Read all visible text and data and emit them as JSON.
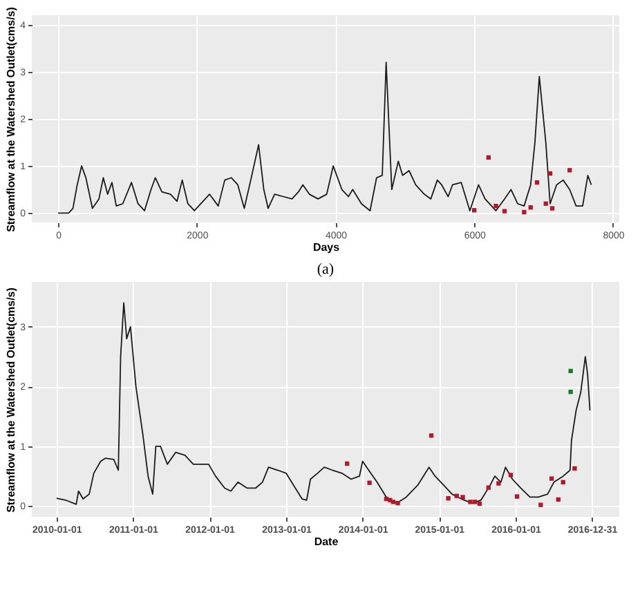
{
  "chart_data": [
    {
      "type": "line",
      "xlabel": "Days",
      "ylabel": "Streamflow at the Watershed Outlet(cms/s)",
      "annotations": [
        "(a)"
      ],
      "xlim": [
        -380,
        8090
      ],
      "xticks": [
        0,
        2000,
        4000,
        6000,
        8000
      ],
      "ylim": [
        -0.2,
        4.2
      ],
      "yticks": [
        0,
        1,
        2,
        3,
        4
      ],
      "grid": true,
      "series": [
        {
          "type": "line",
          "color": "#1a1a1a",
          "x": [
            0,
            150,
            213,
            275,
            338,
            400,
            494,
            588,
            651,
            713,
            776,
            838,
            932,
            1057,
            1151,
            1245,
            1339,
            1401,
            1495,
            1620,
            1714,
            1789,
            1870,
            1964,
            2058,
            2183,
            2308,
            2402,
            2496,
            2590,
            2683,
            2777,
            2890,
            2965,
            3027,
            3121,
            3246,
            3371,
            3465,
            3528,
            3622,
            3747,
            3872,
            3966,
            4091,
            4185,
            4247,
            4372,
            4497,
            4591,
            4673,
            4729,
            4810,
            4904,
            4966,
            5060,
            5154,
            5279,
            5373,
            5467,
            5529,
            5623,
            5686,
            5811,
            5936,
            6061,
            6155,
            6311,
            6436,
            6530,
            6624,
            6718,
            6812,
            6874,
            6937,
            7031,
            7093,
            7187,
            7281,
            7375,
            7468,
            7562,
            7637,
            7687
          ],
          "values": [
            0,
            0,
            0.1,
            0.6,
            1.0,
            0.75,
            0.1,
            0.3,
            0.75,
            0.4,
            0.65,
            0.15,
            0.2,
            0.65,
            0.2,
            0.05,
            0.5,
            0.75,
            0.45,
            0.4,
            0.25,
            0.7,
            0.2,
            0.05,
            0.2,
            0.4,
            0.15,
            0.7,
            0.75,
            0.6,
            0.1,
            0.7,
            1.45,
            0.5,
            0.1,
            0.4,
            0.35,
            0.3,
            0.45,
            0.6,
            0.4,
            0.3,
            0.4,
            1.0,
            0.5,
            0.35,
            0.5,
            0.2,
            0.05,
            0.75,
            0.8,
            3.2,
            0.5,
            1.1,
            0.8,
            0.9,
            0.6,
            0.4,
            0.3,
            0.7,
            0.6,
            0.35,
            0.6,
            0.65,
            0.05,
            0.6,
            0.3,
            0.05,
            0.3,
            0.5,
            0.2,
            0.15,
            0.6,
            1.5,
            2.9,
            1.5,
            0.2,
            0.6,
            0.7,
            0.5,
            0.15,
            0.15,
            0.8,
            0.6
          ]
        },
        {
          "type": "scatter",
          "color": "#b2182b",
          "x": [
            5999,
            6205,
            6311,
            6436,
            6718,
            6812,
            6905,
            7031,
            7093,
            7124,
            7375
          ],
          "values": [
            0.06,
            1.18,
            0.15,
            0.04,
            0.02,
            0.12,
            0.65,
            0.2,
            0.84,
            0.1,
            0.91
          ]
        }
      ]
    },
    {
      "type": "line",
      "xlabel": "Date",
      "ylabel": "Streamflow at the Watershed Outlet(cms/s)",
      "xlim": [
        "2009-09-05",
        "2017-05-10"
      ],
      "xticks": [
        "2010-01-01",
        "2011-01-01",
        "2012-01-01",
        "2013-01-01",
        "2014-01-01",
        "2015-01-01",
        "2016-01-01",
        "2016-12-31"
      ],
      "ylim": [
        -0.18,
        3.75
      ],
      "yticks": [
        0,
        1,
        2,
        3
      ],
      "grid": true,
      "series": [
        {
          "type": "line",
          "color": "#1a1a1a",
          "x": [
            "2010-01-01",
            "2010-02-14",
            "2010-04-05",
            "2010-04-16",
            "2010-05-08",
            "2010-06-06",
            "2010-06-28",
            "2010-07-31",
            "2010-08-22",
            "2010-10-01",
            "2010-10-23",
            "2010-11-03",
            "2010-11-18",
            "2010-12-02",
            "2010-12-20",
            "2011-01-15",
            "2011-02-17",
            "2011-03-14",
            "2011-04-05",
            "2011-04-20",
            "2011-05-12",
            "2011-06-14",
            "2011-07-24",
            "2011-09-06",
            "2011-10-16",
            "2011-11-29",
            "2011-12-28",
            "2012-01-30",
            "2012-03-14",
            "2012-04-12",
            "2012-05-16",
            "2012-06-29",
            "2012-08-08",
            "2012-09-10",
            "2012-10-09",
            "2012-11-22",
            "2013-01-01",
            "2013-02-14",
            "2013-03-18",
            "2013-04-09",
            "2013-04-27",
            "2013-05-31",
            "2013-07-02",
            "2013-08-11",
            "2013-09-24",
            "2013-11-07",
            "2013-12-17",
            "2014-01-01",
            "2014-01-30",
            "2014-03-11",
            "2014-04-24",
            "2014-06-14",
            "2014-07-28",
            "2014-09-21",
            "2014-11-14",
            "2014-12-13",
            "2015-01-23",
            "2015-03-04",
            "2015-04-17",
            "2015-06-07",
            "2015-07-20",
            "2015-09-02",
            "2015-09-24",
            "2015-10-23",
            "2015-11-14",
            "2015-12-17",
            "2016-01-26",
            "2016-03-10",
            "2016-04-19",
            "2016-06-02",
            "2016-07-02",
            "2016-08-15",
            "2016-09-17",
            "2016-09-24",
            "2016-10-16",
            "2016-11-07",
            "2016-11-29",
            "2016-12-10",
            "2016-12-21"
          ],
          "values": [
            0.13,
            0.1,
            0.03,
            0.25,
            0.12,
            0.2,
            0.55,
            0.75,
            0.8,
            0.78,
            0.6,
            2.5,
            3.4,
            2.8,
            3.0,
            2.0,
            1.2,
            0.5,
            0.2,
            1.0,
            1.0,
            0.7,
            0.9,
            0.85,
            0.7,
            0.7,
            0.7,
            0.5,
            0.3,
            0.25,
            0.4,
            0.3,
            0.3,
            0.4,
            0.65,
            0.6,
            0.55,
            0.3,
            0.12,
            0.1,
            0.45,
            0.55,
            0.65,
            0.6,
            0.55,
            0.45,
            0.5,
            0.75,
            0.6,
            0.4,
            0.15,
            0.05,
            0.15,
            0.35,
            0.65,
            0.5,
            0.35,
            0.2,
            0.12,
            0.05,
            0.1,
            0.35,
            0.5,
            0.4,
            0.65,
            0.45,
            0.3,
            0.15,
            0.15,
            0.2,
            0.4,
            0.5,
            0.6,
            1.1,
            1.6,
            1.9,
            2.5,
            2.2,
            1.6
          ]
        },
        {
          "type": "scatter",
          "color": "#b2182b",
          "x": [
            "2013-10-19",
            "2014-02-03",
            "2014-04-24",
            "2014-05-12",
            "2014-05-27",
            "2014-06-18",
            "2014-11-25",
            "2015-02-14",
            "2015-03-26",
            "2015-04-24",
            "2015-05-30",
            "2015-06-21",
            "2015-07-13",
            "2015-08-25",
            "2015-10-12",
            "2015-12-09",
            "2016-01-08",
            "2016-04-30",
            "2016-06-21",
            "2016-07-23",
            "2016-08-15",
            "2016-10-09"
          ],
          "values": [
            0.71,
            0.39,
            0.12,
            0.1,
            0.07,
            0.05,
            1.18,
            0.13,
            0.17,
            0.15,
            0.07,
            0.07,
            0.04,
            0.31,
            0.38,
            0.52,
            0.16,
            0.02,
            0.46,
            0.11,
            0.4,
            0.63
          ]
        },
        {
          "type": "scatter",
          "color": "#1b7a2e",
          "x": [
            "2016-09-20",
            "2016-09-20"
          ],
          "values": [
            2.26,
            1.91
          ]
        }
      ]
    }
  ]
}
